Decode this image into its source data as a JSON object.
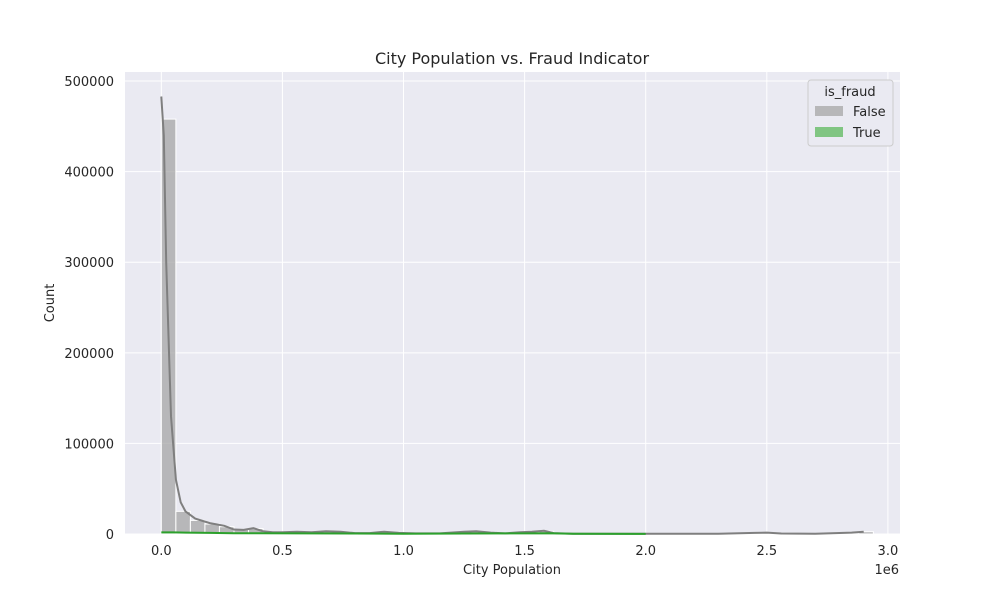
{
  "chart_data": {
    "type": "bar",
    "title": "City Population vs. Fraud Indicator",
    "xlabel": "City Population",
    "ylabel": "Count",
    "x_offset_label": "1e6",
    "xlim": [
      -0.15,
      3.05
    ],
    "ylim": [
      0,
      510000
    ],
    "x_ticks": [
      0.0,
      0.5,
      1.0,
      1.5,
      2.0,
      2.5,
      3.0
    ],
    "x_tick_labels": [
      "0.0",
      "0.5",
      "1.0",
      "1.5",
      "2.0",
      "2.5",
      "3.0"
    ],
    "y_ticks": [
      0,
      100000,
      200000,
      300000,
      400000,
      500000
    ],
    "y_tick_labels": [
      "0",
      "100000",
      "200000",
      "300000",
      "400000",
      "500000"
    ],
    "grid": true,
    "legend": {
      "title": "is_fraud",
      "placement": "top-right",
      "entries": [
        "False",
        "True"
      ]
    },
    "bin_width": 0.06,
    "series": [
      {
        "name": "False",
        "color": "#a5a5a5",
        "bars": [
          {
            "x": 0.0,
            "value": 458000
          },
          {
            "x": 0.06,
            "value": 25000
          },
          {
            "x": 0.12,
            "value": 15000
          },
          {
            "x": 0.18,
            "value": 11000
          },
          {
            "x": 0.24,
            "value": 8000
          },
          {
            "x": 0.3,
            "value": 5000
          },
          {
            "x": 0.36,
            "value": 6000
          },
          {
            "x": 0.42,
            "value": 2500
          },
          {
            "x": 0.48,
            "value": 2500
          },
          {
            "x": 0.54,
            "value": 2500
          },
          {
            "x": 0.6,
            "value": 2000
          },
          {
            "x": 0.66,
            "value": 2500
          },
          {
            "x": 0.72,
            "value": 2500
          },
          {
            "x": 0.78,
            "value": 1000
          },
          {
            "x": 0.84,
            "value": 1000
          },
          {
            "x": 0.9,
            "value": 2000
          },
          {
            "x": 0.96,
            "value": 1500
          },
          {
            "x": 1.26,
            "value": 2500
          },
          {
            "x": 1.32,
            "value": 2000
          },
          {
            "x": 1.38,
            "value": 1000
          },
          {
            "x": 1.5,
            "value": 2000
          },
          {
            "x": 1.56,
            "value": 3000
          },
          {
            "x": 2.46,
            "value": 1500
          },
          {
            "x": 2.88,
            "value": 2500
          }
        ],
        "kde": {
          "color": "#7f7f7f",
          "x": [
            0.0,
            0.01,
            0.02,
            0.04,
            0.06,
            0.08,
            0.1,
            0.14,
            0.2,
            0.26,
            0.3,
            0.34,
            0.38,
            0.42,
            0.46,
            0.5,
            0.56,
            0.62,
            0.68,
            0.74,
            0.8,
            0.86,
            0.92,
            0.98,
            1.05,
            1.15,
            1.25,
            1.3,
            1.36,
            1.42,
            1.48,
            1.53,
            1.58,
            1.62,
            1.7,
            1.9,
            2.1,
            2.3,
            2.45,
            2.5,
            2.56,
            2.7,
            2.85,
            2.9
          ],
          "y": [
            483000,
            440000,
            300000,
            130000,
            60000,
            35000,
            25000,
            17000,
            12000,
            9000,
            5000,
            4500,
            6500,
            3000,
            2000,
            2000,
            2500,
            2000,
            3000,
            2500,
            1000,
            1000,
            2500,
            1200,
            700,
            700,
            2500,
            3000,
            1500,
            700,
            2000,
            2500,
            3500,
            1000,
            300,
            200,
            200,
            300,
            1200,
            1500,
            500,
            300,
            1500,
            2500
          ]
        }
      },
      {
        "name": "True",
        "color": "#5cb85c",
        "bars": [
          {
            "x": 0.0,
            "value": 1500
          },
          {
            "x": 0.06,
            "value": 500
          },
          {
            "x": 0.12,
            "value": 300
          },
          {
            "x": 0.18,
            "value": 200
          }
        ],
        "kde": {
          "color": "#2ca02c",
          "x": [
            0.0,
            0.05,
            0.1,
            0.2,
            0.3,
            0.4,
            0.6,
            0.8,
            1.0,
            1.25,
            1.5,
            1.6,
            1.7,
            2.0
          ],
          "y": [
            1800,
            1800,
            1500,
            1200,
            900,
            900,
            700,
            500,
            300,
            600,
            700,
            800,
            200,
            100
          ]
        }
      }
    ]
  }
}
